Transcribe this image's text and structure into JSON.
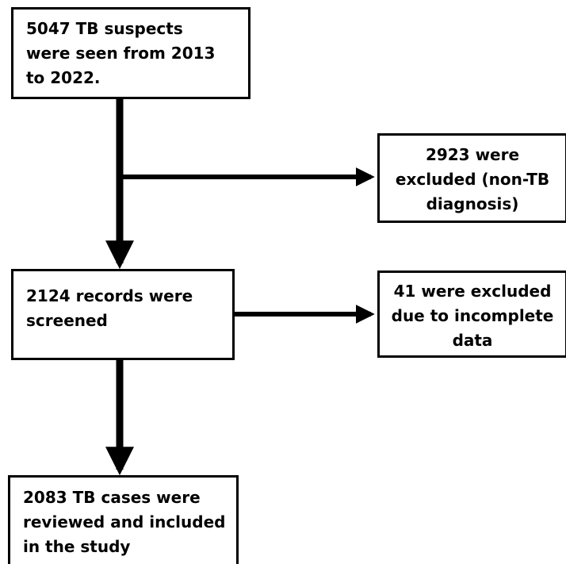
{
  "flowchart": {
    "start": {
      "lines": [
        "5047 TB suspects",
        "were seen from 2013",
        "to 2022."
      ]
    },
    "exclusion_non_tb": {
      "lines": [
        "2923 were",
        "excluded (non-TB",
        "diagnosis)"
      ]
    },
    "screened": {
      "lines": [
        "2124 records were",
        "screened"
      ]
    },
    "exclusion_incomplete": {
      "lines": [
        "41 were excluded",
        "due to incomplete",
        "data"
      ]
    },
    "included": {
      "lines": [
        "2083 TB cases were",
        "reviewed and included",
        "in the study"
      ]
    }
  },
  "colors": {
    "stroke": "#000000",
    "background": "#ffffff"
  }
}
